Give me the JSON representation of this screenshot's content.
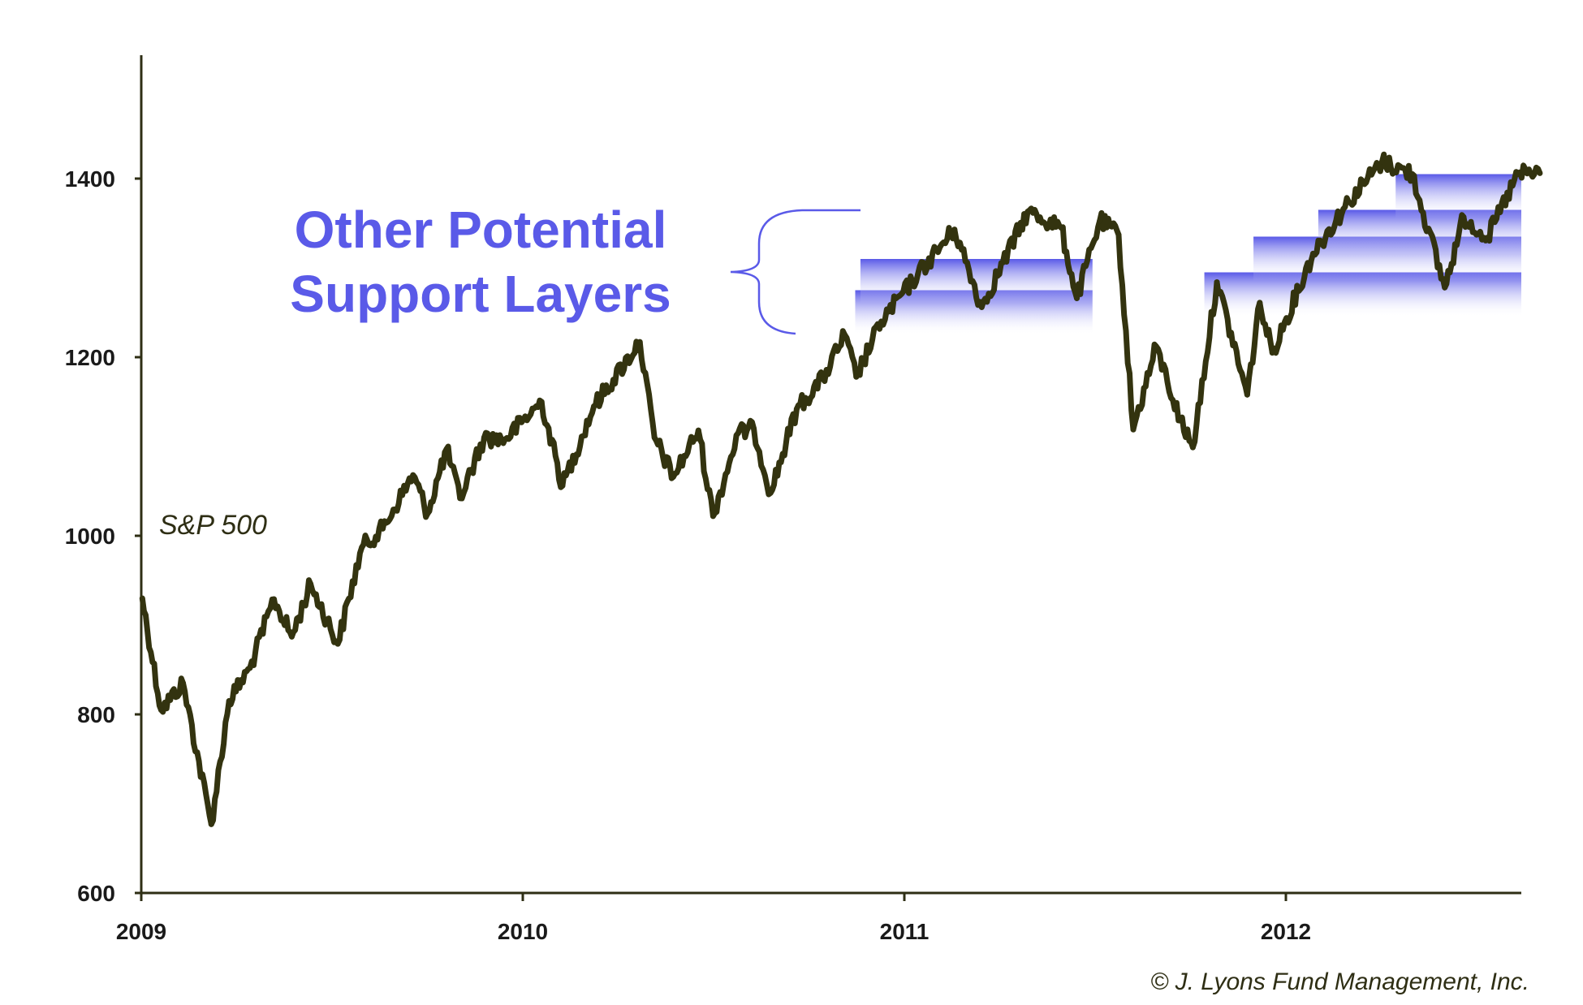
{
  "chart_data": {
    "type": "line",
    "title": "",
    "xlabel": "",
    "ylabel": "",
    "ylim": [
      600,
      1560
    ],
    "xlim": [
      "2009-01-01",
      "2012-08-31"
    ],
    "y_ticks": [
      600,
      800,
      1000,
      1200,
      1400
    ],
    "y_tick_labels": [
      "600",
      "800",
      "1000",
      "1200",
      "1400"
    ],
    "x_ticks": [
      "2009-01-01",
      "2010-01-01",
      "2011-01-01",
      "2012-01-01"
    ],
    "x_tick_labels": [
      "2009",
      "2010",
      "2011",
      "2012"
    ],
    "grid": false,
    "series": [
      {
        "name": "S&P 500",
        "color": "#33330f",
        "points": [
          [
            "2009-01-02",
            930
          ],
          [
            "2009-01-20",
            805
          ],
          [
            "2009-02-10",
            835
          ],
          [
            "2009-03-09",
            677
          ],
          [
            "2009-03-26",
            815
          ],
          [
            "2009-04-15",
            852
          ],
          [
            "2009-05-08",
            929
          ],
          [
            "2009-05-25",
            887
          ],
          [
            "2009-06-12",
            946
          ],
          [
            "2009-07-08",
            879
          ],
          [
            "2009-07-31",
            987
          ],
          [
            "2009-08-20",
            1008
          ],
          [
            "2009-09-18",
            1068
          ],
          [
            "2009-10-02",
            1025
          ],
          [
            "2009-10-20",
            1097
          ],
          [
            "2009-11-02",
            1042
          ],
          [
            "2009-11-25",
            1110
          ],
          [
            "2009-12-15",
            1108
          ],
          [
            "2010-01-19",
            1150
          ],
          [
            "2010-02-08",
            1056
          ],
          [
            "2010-03-10",
            1145
          ],
          [
            "2010-04-23",
            1217
          ],
          [
            "2010-05-07",
            1110
          ],
          [
            "2010-05-25",
            1066
          ],
          [
            "2010-06-18",
            1118
          ],
          [
            "2010-07-02",
            1022
          ],
          [
            "2010-07-26",
            1115
          ],
          [
            "2010-08-10",
            1120
          ],
          [
            "2010-08-26",
            1048
          ],
          [
            "2010-09-20",
            1142
          ],
          [
            "2010-10-15",
            1176
          ],
          [
            "2010-11-05",
            1225
          ],
          [
            "2010-11-16",
            1178
          ],
          [
            "2010-12-10",
            1240
          ],
          [
            "2011-01-14",
            1293
          ],
          [
            "2011-02-18",
            1343
          ],
          [
            "2011-03-16",
            1256
          ],
          [
            "2011-04-29",
            1363
          ],
          [
            "2011-05-31",
            1345
          ],
          [
            "2011-06-15",
            1266
          ],
          [
            "2011-07-07",
            1353
          ],
          [
            "2011-07-25",
            1337
          ],
          [
            "2011-08-08",
            1119
          ],
          [
            "2011-08-30",
            1212
          ],
          [
            "2011-09-22",
            1129
          ],
          [
            "2011-10-04",
            1099
          ],
          [
            "2011-10-27",
            1284
          ],
          [
            "2011-11-25",
            1158
          ],
          [
            "2011-12-07",
            1261
          ],
          [
            "2011-12-19",
            1205
          ],
          [
            "2012-01-27",
            1316
          ],
          [
            "2012-03-01",
            1374
          ],
          [
            "2012-04-02",
            1419
          ],
          [
            "2012-05-01",
            1405
          ],
          [
            "2012-06-01",
            1278
          ],
          [
            "2012-06-19",
            1357
          ],
          [
            "2012-07-12",
            1334
          ],
          [
            "2012-08-10",
            1405
          ],
          [
            "2012-08-31",
            1406
          ]
        ]
      }
    ],
    "support_layers": [
      {
        "start": "2010-11-15",
        "end": "2011-06-30",
        "level": 1255
      },
      {
        "start": "2010-11-20",
        "end": "2011-06-30",
        "level": 1290
      },
      {
        "start": "2011-10-15",
        "end": "2012-08-31",
        "level": 1275
      },
      {
        "start": "2011-12-01",
        "end": "2012-08-31",
        "level": 1315
      },
      {
        "start": "2012-02-01",
        "end": "2012-08-31",
        "level": 1345
      },
      {
        "start": "2012-04-15",
        "end": "2012-08-31",
        "level": 1385
      }
    ],
    "annotation": {
      "lines": [
        "Other Potential",
        "Support Layers"
      ],
      "color": "#5a5ae8"
    },
    "series_label": "S&P 500",
    "copyright": "© J. Lyons Fund Management, Inc."
  }
}
